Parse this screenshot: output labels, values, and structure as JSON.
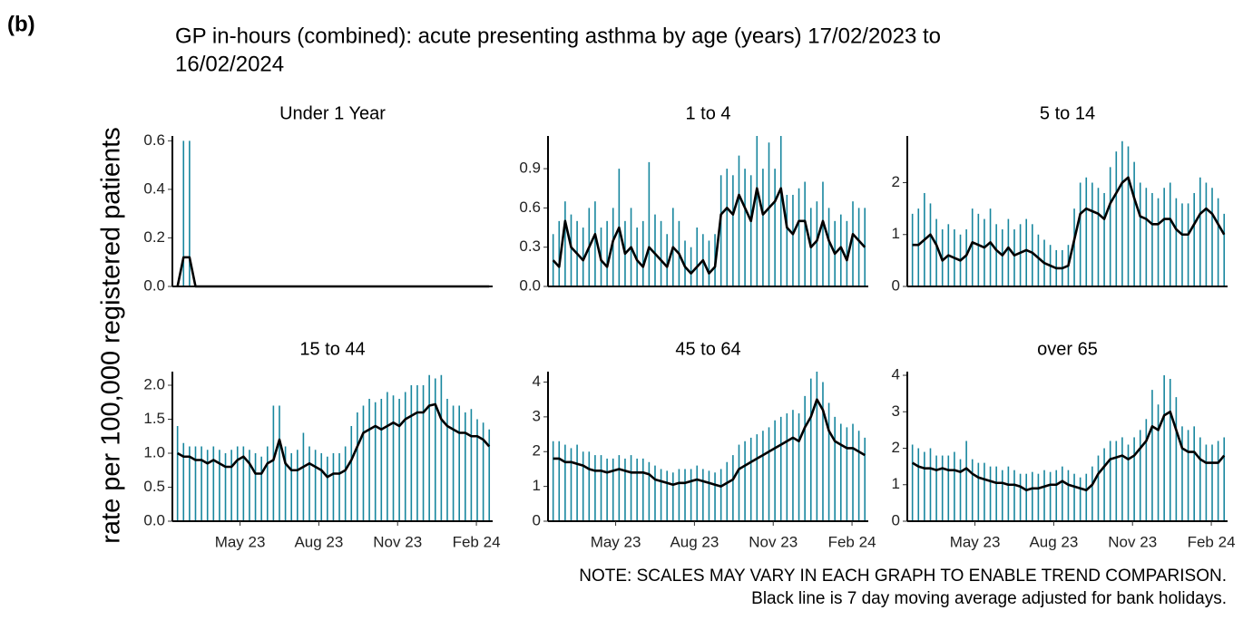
{
  "chart_data": {
    "type": "line",
    "label": "(b)",
    "title": "GP in-hours (combined): acute presenting asthma by age (years) 17/02/2023 to",
    "subtitle": "16/02/2024",
    "y_label": "rate per 100,000 registered patients",
    "note": [
      "NOTE: SCALES MAY VARY IN EACH GRAPH TO ENABLE TREND COMPARISON.",
      "Black line is 7 day moving average adjusted for bank holidays."
    ],
    "daily_color": "#17869e",
    "average_color": "#000000",
    "x": [
      0,
      7,
      14,
      21,
      28,
      35,
      42,
      49,
      56,
      63,
      70,
      77,
      84,
      91,
      98,
      105,
      112,
      119,
      126,
      133,
      140,
      147,
      154,
      161,
      168,
      175,
      182,
      189,
      196,
      203,
      210,
      217,
      224,
      231,
      238,
      245,
      252,
      259,
      266,
      273,
      280,
      287,
      294,
      301,
      308,
      315,
      322,
      329,
      336,
      343,
      350,
      357,
      364
    ],
    "xlim": [
      -6,
      368
    ],
    "xticks": [
      {
        "value": 73,
        "label": "May 23"
      },
      {
        "value": 165,
        "label": "Aug 23"
      },
      {
        "value": 257,
        "label": "Nov 23"
      },
      {
        "value": 349,
        "label": "Feb 24"
      }
    ],
    "facets": [
      {
        "title": "Under 1 Year",
        "ylim": [
          0,
          0.62
        ],
        "yticks": [
          {
            "value": 0,
            "label": "0.0"
          },
          {
            "value": 0.2,
            "label": "0.2"
          },
          {
            "value": 0.4,
            "label": "0.4"
          },
          {
            "value": 0.6,
            "label": "0.6"
          }
        ],
        "daily": [
          0,
          0.6,
          0.6,
          0,
          0,
          0,
          0,
          0,
          0,
          0,
          0,
          0,
          0,
          0,
          0,
          0,
          0,
          0,
          0,
          0,
          0,
          0,
          0,
          0,
          0,
          0,
          0,
          0,
          0,
          0,
          0,
          0,
          0,
          0,
          0,
          0,
          0,
          0,
          0,
          0,
          0,
          0,
          0,
          0,
          0,
          0,
          0,
          0,
          0,
          0,
          0,
          0,
          0
        ],
        "average": [
          0,
          0.12,
          0.12,
          0,
          0,
          0,
          0,
          0,
          0,
          0,
          0,
          0,
          0,
          0,
          0,
          0,
          0,
          0,
          0,
          0,
          0,
          0,
          0,
          0,
          0,
          0,
          0,
          0,
          0,
          0,
          0,
          0,
          0,
          0,
          0,
          0,
          0,
          0,
          0,
          0,
          0,
          0,
          0,
          0,
          0,
          0,
          0,
          0,
          0,
          0,
          0,
          0,
          0
        ]
      },
      {
        "title": "1 to 4",
        "ylim": [
          0,
          1.15
        ],
        "yticks": [
          {
            "value": 0,
            "label": "0.0"
          },
          {
            "value": 0.3,
            "label": "0.3"
          },
          {
            "value": 0.6,
            "label": "0.6"
          },
          {
            "value": 0.9,
            "label": "0.9"
          }
        ],
        "daily": [
          0.4,
          0.5,
          0.65,
          0.55,
          0.5,
          0.45,
          0.6,
          0.65,
          0.45,
          0.5,
          0.6,
          0.9,
          0.5,
          0.6,
          0.45,
          0.5,
          0.95,
          0.55,
          0.5,
          0.4,
          0.6,
          0.5,
          0.35,
          0.3,
          0.45,
          0.4,
          0.35,
          0.4,
          0.85,
          0.9,
          0.85,
          1.0,
          0.9,
          0.85,
          1.15,
          0.9,
          1.1,
          0.9,
          1.15,
          0.7,
          0.7,
          0.75,
          0.8,
          0.6,
          0.65,
          0.8,
          0.6,
          0.5,
          0.55,
          0.5,
          0.65,
          0.6,
          0.6
        ],
        "average": [
          0.2,
          0.15,
          0.5,
          0.3,
          0.25,
          0.2,
          0.3,
          0.4,
          0.2,
          0.15,
          0.35,
          0.45,
          0.25,
          0.3,
          0.2,
          0.15,
          0.3,
          0.25,
          0.2,
          0.15,
          0.3,
          0.25,
          0.15,
          0.1,
          0.15,
          0.2,
          0.1,
          0.15,
          0.55,
          0.6,
          0.55,
          0.7,
          0.6,
          0.5,
          0.75,
          0.55,
          0.6,
          0.65,
          0.75,
          0.45,
          0.4,
          0.5,
          0.5,
          0.3,
          0.35,
          0.5,
          0.35,
          0.25,
          0.3,
          0.2,
          0.4,
          0.35,
          0.3
        ]
      },
      {
        "title": "5 to 14",
        "ylim": [
          0,
          2.9
        ],
        "yticks": [
          0,
          1,
          2
        ],
        "daily": [
          1.4,
          1.5,
          1.8,
          1.6,
          1.3,
          1.1,
          1.2,
          1.1,
          1.0,
          1.1,
          1.5,
          1.4,
          1.3,
          1.5,
          1.2,
          1.1,
          1.3,
          1.1,
          1.2,
          1.3,
          1.2,
          1.0,
          0.9,
          0.8,
          0.7,
          0.7,
          0.8,
          1.5,
          2.0,
          2.1,
          2.0,
          1.9,
          1.8,
          2.3,
          2.6,
          2.8,
          2.7,
          2.4,
          2.0,
          1.9,
          1.8,
          1.7,
          1.9,
          2.0,
          1.7,
          1.6,
          1.6,
          1.8,
          2.1,
          2.0,
          1.9,
          1.7,
          1.4
        ],
        "average": [
          0.8,
          0.8,
          0.9,
          1.0,
          0.8,
          0.5,
          0.6,
          0.55,
          0.5,
          0.6,
          0.85,
          0.8,
          0.75,
          0.85,
          0.7,
          0.6,
          0.75,
          0.6,
          0.65,
          0.7,
          0.65,
          0.55,
          0.45,
          0.4,
          0.35,
          0.35,
          0.4,
          0.9,
          1.4,
          1.5,
          1.45,
          1.4,
          1.3,
          1.6,
          1.8,
          2.0,
          2.1,
          1.7,
          1.35,
          1.3,
          1.2,
          1.2,
          1.3,
          1.3,
          1.1,
          1.0,
          1.0,
          1.2,
          1.4,
          1.5,
          1.4,
          1.2,
          1.0
        ]
      },
      {
        "title": "15 to 44",
        "ylim": [
          0,
          2.2
        ],
        "yticks": [
          {
            "value": 0,
            "label": "0.0"
          },
          {
            "value": 0.5,
            "label": "0.5"
          },
          {
            "value": 1,
            "label": "1.0"
          },
          {
            "value": 1.5,
            "label": "1.5"
          },
          {
            "value": 2,
            "label": "2.0"
          }
        ],
        "daily": [
          1.4,
          1.15,
          1.1,
          1.1,
          1.1,
          1.05,
          1.1,
          1.05,
          1.0,
          1.05,
          1.1,
          1.1,
          1.05,
          1.0,
          0.95,
          1.1,
          1.7,
          1.7,
          1.1,
          1.0,
          1.05,
          1.3,
          1.1,
          1.05,
          1.0,
          0.95,
          1.0,
          1.0,
          1.1,
          1.4,
          1.6,
          1.7,
          1.8,
          1.75,
          1.8,
          1.9,
          1.85,
          1.8,
          1.9,
          2.0,
          2.0,
          2.0,
          2.15,
          2.1,
          2.15,
          1.8,
          1.7,
          1.7,
          1.6,
          1.65,
          1.5,
          1.45,
          1.35
        ],
        "average": [
          1.0,
          0.95,
          0.95,
          0.9,
          0.9,
          0.85,
          0.9,
          0.85,
          0.8,
          0.8,
          0.9,
          0.95,
          0.85,
          0.7,
          0.7,
          0.85,
          0.9,
          1.2,
          0.85,
          0.75,
          0.75,
          0.8,
          0.85,
          0.8,
          0.75,
          0.65,
          0.7,
          0.7,
          0.75,
          0.9,
          1.1,
          1.3,
          1.35,
          1.4,
          1.35,
          1.4,
          1.45,
          1.4,
          1.5,
          1.55,
          1.6,
          1.6,
          1.7,
          1.72,
          1.5,
          1.4,
          1.35,
          1.3,
          1.3,
          1.25,
          1.25,
          1.2,
          1.1
        ]
      },
      {
        "title": "45 to 64",
        "ylim": [
          0,
          4.3
        ],
        "yticks": [
          0,
          1,
          2,
          3,
          4
        ],
        "daily": [
          2.3,
          2.3,
          2.2,
          2.1,
          2.2,
          2.0,
          2.0,
          1.9,
          1.9,
          1.8,
          1.8,
          1.9,
          1.8,
          1.9,
          1.8,
          1.8,
          1.7,
          1.6,
          1.5,
          1.45,
          1.4,
          1.5,
          1.5,
          1.5,
          1.6,
          1.5,
          1.45,
          1.4,
          1.5,
          1.7,
          1.9,
          2.2,
          2.3,
          2.4,
          2.5,
          2.6,
          2.7,
          2.9,
          3.0,
          3.1,
          3.2,
          3.1,
          3.6,
          4.1,
          4.3,
          4.0,
          3.4,
          3.0,
          2.8,
          2.7,
          2.8,
          2.6,
          2.4
        ],
        "average": [
          1.8,
          1.8,
          1.7,
          1.7,
          1.65,
          1.6,
          1.5,
          1.45,
          1.45,
          1.4,
          1.45,
          1.5,
          1.45,
          1.4,
          1.4,
          1.4,
          1.35,
          1.2,
          1.15,
          1.1,
          1.05,
          1.1,
          1.1,
          1.15,
          1.2,
          1.15,
          1.1,
          1.05,
          1.0,
          1.1,
          1.2,
          1.5,
          1.6,
          1.7,
          1.8,
          1.9,
          2.0,
          2.1,
          2.2,
          2.3,
          2.4,
          2.3,
          2.7,
          3.0,
          3.5,
          3.2,
          2.6,
          2.3,
          2.2,
          2.1,
          2.1,
          2.0,
          1.9
        ]
      },
      {
        "title": "over 65",
        "ylim": [
          0,
          4.1
        ],
        "yticks": [
          0,
          1,
          2,
          3,
          4
        ],
        "daily": [
          2.1,
          2.0,
          1.9,
          2.0,
          1.8,
          1.8,
          1.8,
          1.9,
          1.7,
          2.2,
          1.7,
          1.6,
          1.6,
          1.5,
          1.5,
          1.4,
          1.5,
          1.4,
          1.3,
          1.3,
          1.35,
          1.3,
          1.4,
          1.35,
          1.4,
          1.5,
          1.4,
          1.3,
          1.2,
          1.3,
          1.5,
          1.8,
          2.0,
          2.2,
          2.2,
          2.3,
          2.1,
          2.3,
          2.5,
          2.8,
          3.6,
          3.2,
          4.0,
          3.9,
          3.4,
          2.6,
          2.5,
          2.6,
          2.3,
          2.1,
          2.1,
          2.2,
          2.3
        ],
        "average": [
          1.6,
          1.5,
          1.45,
          1.45,
          1.4,
          1.45,
          1.4,
          1.4,
          1.35,
          1.45,
          1.3,
          1.2,
          1.15,
          1.1,
          1.05,
          1.05,
          1.0,
          1.0,
          0.95,
          0.85,
          0.9,
          0.9,
          0.95,
          1.0,
          1.0,
          1.1,
          1.0,
          0.95,
          0.9,
          0.85,
          1.0,
          1.3,
          1.5,
          1.7,
          1.75,
          1.8,
          1.7,
          1.8,
          2.0,
          2.2,
          2.6,
          2.5,
          2.9,
          3.0,
          2.5,
          2.0,
          1.9,
          1.9,
          1.7,
          1.6,
          1.6,
          1.6,
          1.8
        ]
      }
    ]
  }
}
